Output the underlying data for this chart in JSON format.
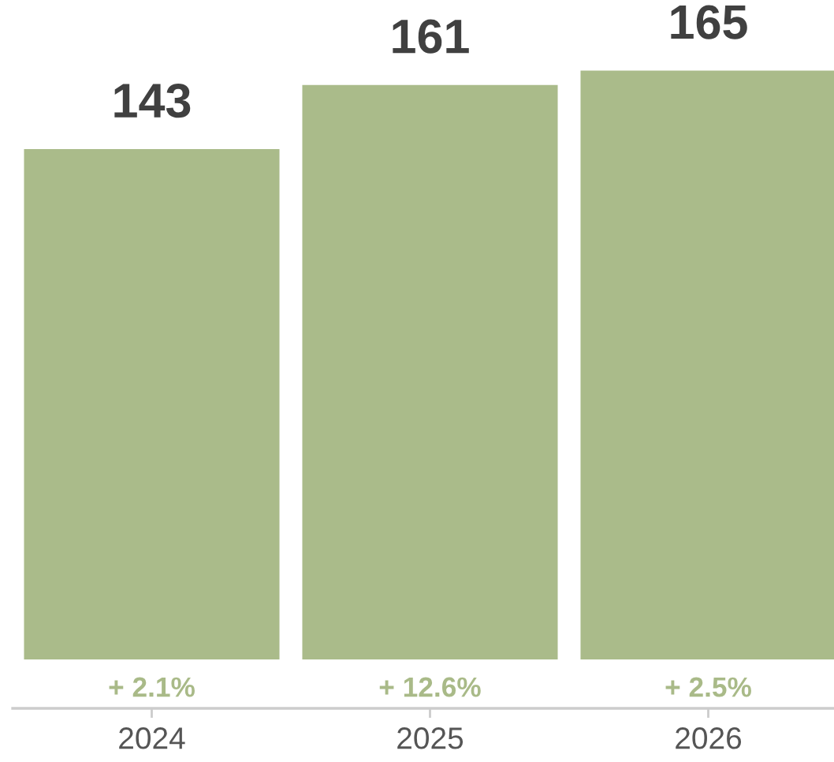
{
  "chart_data": {
    "type": "bar",
    "categories": [
      "2024",
      "2025",
      "2026"
    ],
    "values": [
      143,
      161,
      165
    ],
    "color": "#aabb8a",
    "data_labels": true,
    "tick_labels": "x",
    "annotations": [
      {
        "text": "+ 2.1%",
        "x": "2024",
        "y": 0
      },
      {
        "text": "+ 12.6%",
        "x": "2025",
        "y": 0
      },
      {
        "text": "+ 2.5%",
        "x": "2026",
        "y": 0
      }
    ]
  }
}
